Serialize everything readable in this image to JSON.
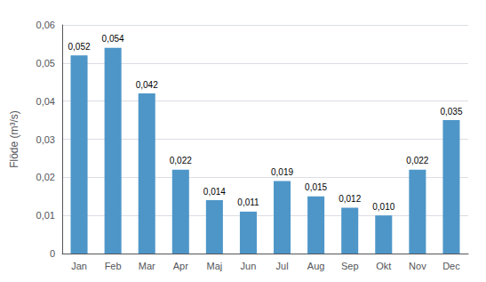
{
  "chart_data": {
    "type": "bar",
    "ylabel": "Flöde (m³/s)",
    "categories": [
      "Jan",
      "Feb",
      "Mar",
      "Apr",
      "Maj",
      "Jun",
      "Jul",
      "Aug",
      "Sep",
      "Okt",
      "Nov",
      "Dec"
    ],
    "values": [
      0.052,
      0.054,
      0.042,
      0.022,
      0.014,
      0.011,
      0.019,
      0.015,
      0.012,
      0.01,
      0.022,
      0.035
    ],
    "value_labels": [
      "0,052",
      "0,054",
      "0,042",
      "0,022",
      "0,014",
      "0,011",
      "0,019",
      "0,015",
      "0,012",
      "0,010",
      "0,022",
      "0,035"
    ],
    "color": "#4e96c8",
    "ylim": [
      0,
      0.06
    ],
    "yticks": [
      0,
      {
        "value": 0.01,
        "label": "0,01"
      },
      {
        "value": 0.02,
        "label": "0,02"
      },
      {
        "value": 0.03,
        "label": "0,03"
      },
      {
        "value": 0.04,
        "label": "0,04"
      },
      {
        "value": 0.05,
        "label": "0,05"
      },
      {
        "value": 0.06,
        "label": "0,06"
      }
    ],
    "grid": true,
    "data_labels": true
  }
}
